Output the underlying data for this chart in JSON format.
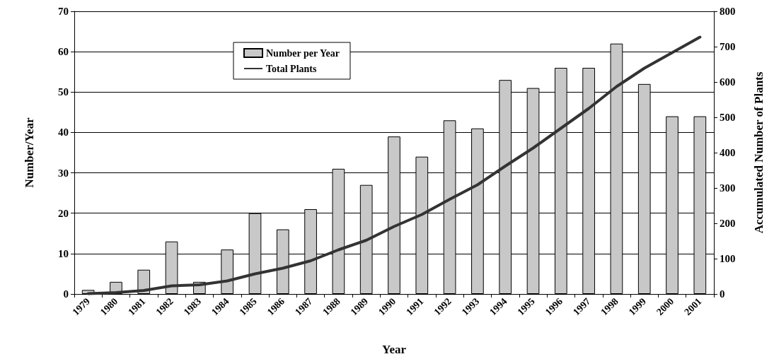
{
  "chart_data": {
    "type": "bar",
    "xlabel": "Year",
    "ylabel": "Number/Year",
    "y2label": "Accumulated Number of Plants",
    "categories": [
      "1979",
      "1980",
      "1981",
      "1982",
      "1983",
      "1984",
      "1985",
      "1986",
      "1987",
      "1988",
      "1989",
      "1990",
      "1991",
      "1992",
      "1993",
      "1994",
      "1995",
      "1996",
      "1997",
      "1998",
      "1999",
      "2000",
      "2001"
    ],
    "series": [
      {
        "name": "Number per Year",
        "color": "#c8c8c8",
        "values": [
          1,
          3,
          6,
          13,
          3,
          11,
          20,
          16,
          21,
          31,
          27,
          39,
          34,
          43,
          41,
          53,
          51,
          56,
          56,
          62,
          52,
          44,
          44
        ]
      },
      {
        "name": "Total Plants",
        "type": "line",
        "axis": "y2",
        "color": "#333333",
        "values": [
          1,
          4,
          10,
          23,
          26,
          37,
          57,
          73,
          94,
          125,
          152,
          191,
          225,
          268,
          309,
          362,
          413,
          469,
          525,
          587,
          639,
          683,
          727
        ]
      }
    ],
    "ylim": [
      0,
      70
    ],
    "yticks": [
      0,
      10,
      20,
      30,
      40,
      50,
      60,
      70
    ],
    "y2lim": [
      0,
      800
    ],
    "y2ticks": [
      0,
      100,
      200,
      300,
      400,
      500,
      600,
      700,
      800
    ],
    "grid": "y",
    "legend": "top",
    "marker": "none",
    "line_style": "solid"
  }
}
